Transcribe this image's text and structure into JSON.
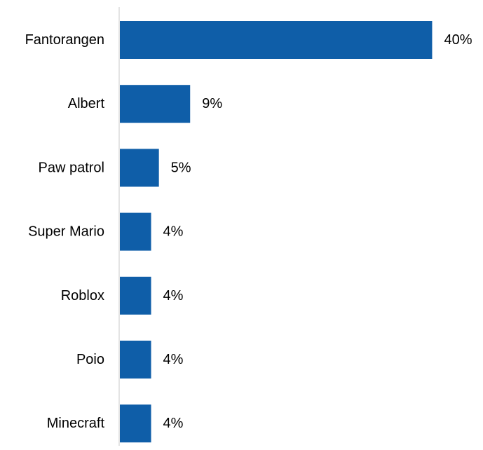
{
  "chart_data": {
    "type": "bar",
    "orientation": "horizontal",
    "categories": [
      "Fantorangen",
      "Albert",
      "Paw patrol",
      "Super Mario",
      "Roblox",
      "Poio",
      "Minecraft"
    ],
    "values": [
      40,
      9,
      5,
      4,
      4,
      4,
      4
    ],
    "value_labels": [
      "40%",
      "9%",
      "5%",
      "4%",
      "4%",
      "4%",
      "4%"
    ],
    "unit": "%",
    "bar_color": "#0f5ea8",
    "axis_color": "#c8c8c8",
    "xlim": [
      0,
      44
    ],
    "grid": false,
    "legend": "none"
  }
}
